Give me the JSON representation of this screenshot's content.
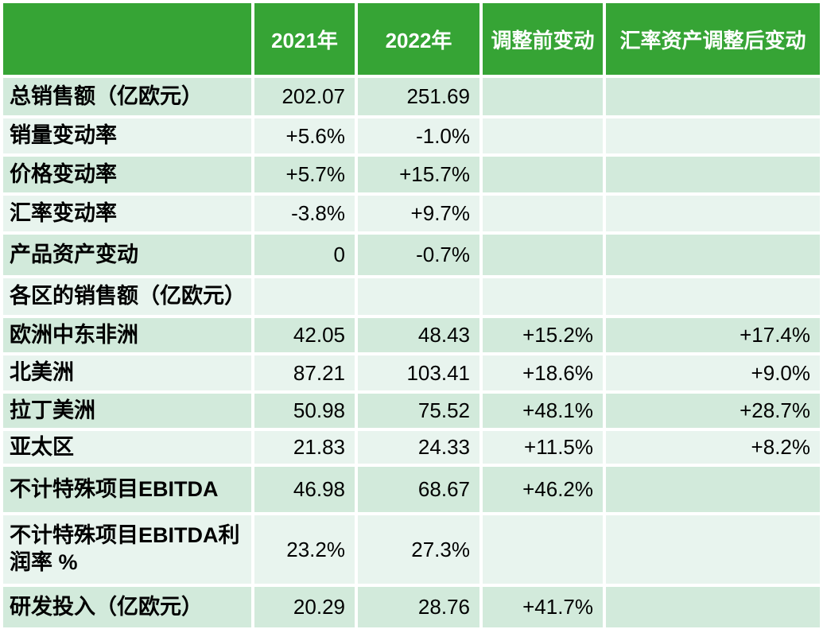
{
  "colors": {
    "header_background": "#36A435",
    "header_text": "#FFFFFF",
    "row_dark": "#D2EADB",
    "row_light": "#E8F4EE",
    "body_text": "#000000",
    "gap": "#FFFFFF"
  },
  "chart_data": {
    "type": "table",
    "columns": [
      "",
      "2021年",
      "2022年",
      "调整前变动",
      "汇率资产调整后变动"
    ],
    "rows": [
      {
        "label": "总销售额（亿欧元）",
        "values": [
          "202.07",
          "251.69",
          "",
          ""
        ]
      },
      {
        "label": "销量变动率",
        "values": [
          "+5.6%",
          "-1.0%",
          "",
          ""
        ]
      },
      {
        "label": "价格变动率",
        "values": [
          "+5.7%",
          "+15.7%",
          "",
          ""
        ]
      },
      {
        "label": "汇率变动率",
        "values": [
          "-3.8%",
          "+9.7%",
          "",
          ""
        ]
      },
      {
        "label": "产品资产变动",
        "values": [
          "0",
          "-0.7%",
          "",
          ""
        ]
      },
      {
        "label": "各区的销售额（亿欧元）",
        "values": [
          "",
          "",
          "",
          ""
        ]
      },
      {
        "label": "欧洲中东非洲",
        "values": [
          "42.05",
          "48.43",
          "+15.2%",
          "+17.4%"
        ]
      },
      {
        "label": "北美洲",
        "values": [
          "87.21",
          "103.41",
          "+18.6%",
          "+9.0%"
        ]
      },
      {
        "label": "拉丁美洲",
        "values": [
          "50.98",
          "75.52",
          "+48.1%",
          "+28.7%"
        ]
      },
      {
        "label": "亚太区",
        "values": [
          "21.83",
          "24.33",
          "+11.5%",
          "+8.2%"
        ]
      },
      {
        "label": "不计特殊项目EBITDA",
        "values": [
          "46.98",
          "68.67",
          "+46.2%",
          ""
        ]
      },
      {
        "label": "不计特殊项目EBITDA利润率 %",
        "values": [
          "23.2%",
          "27.3%",
          "",
          ""
        ]
      },
      {
        "label": "研发投入（亿欧元）",
        "values": [
          "20.29",
          "28.76",
          "+41.7%",
          ""
        ]
      }
    ]
  }
}
